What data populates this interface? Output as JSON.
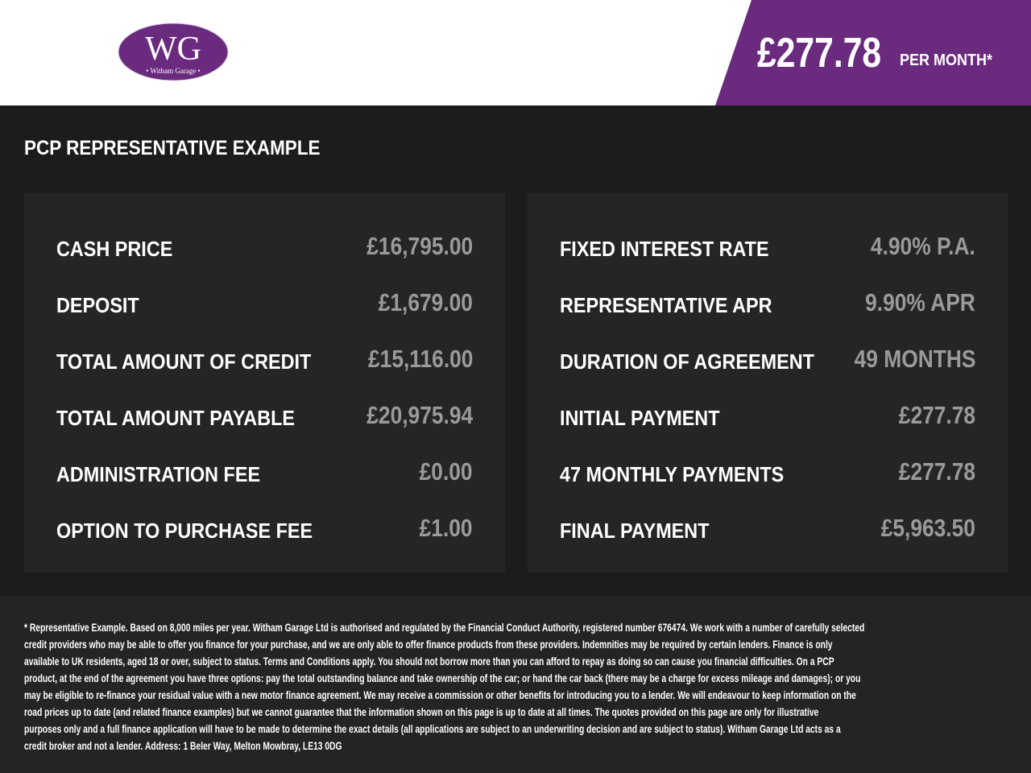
{
  "header": {
    "logo": {
      "monogram": "WG",
      "name": "• Witham Garage •"
    },
    "price": "£277.78",
    "price_suffix": "PER MONTH*",
    "colors": {
      "accent": "#6a2a7e",
      "background": "#1c1c1c",
      "panel": "#252525",
      "value": "#9a9a9a"
    }
  },
  "section_title": "PCP REPRESENTATIVE EXAMPLE",
  "left_panel": [
    {
      "label": "CASH PRICE",
      "value": "£16,795.00"
    },
    {
      "label": "DEPOSIT",
      "value": "£1,679.00"
    },
    {
      "label": "TOTAL AMOUNT OF CREDIT",
      "value": "£15,116.00"
    },
    {
      "label": "TOTAL AMOUNT PAYABLE",
      "value": "£20,975.94"
    },
    {
      "label": "ADMINISTRATION FEE",
      "value": "£0.00"
    },
    {
      "label": "OPTION TO PURCHASE FEE",
      "value": "£1.00"
    }
  ],
  "right_panel": [
    {
      "label": "FIXED INTEREST RATE",
      "value": "4.90% P.A."
    },
    {
      "label": "REPRESENTATIVE APR",
      "value": "9.90% APR"
    },
    {
      "label": "DURATION OF AGREEMENT",
      "value": "49 MONTHS"
    },
    {
      "label": "INITIAL PAYMENT",
      "value": "£277.78"
    },
    {
      "label": "47 MONTHLY PAYMENTS",
      "value": "£277.78"
    },
    {
      "label": "FINAL PAYMENT",
      "value": "£5,963.50"
    }
  ],
  "disclaimer": [
    "* Representative Example. Based on 8,000 miles per year. Witham Garage Ltd is authorised and regulated by the Financial Conduct Authority, registered number 676474. We work with a number of carefully selected",
    "credit providers who may be able to offer you finance for your purchase, and we are only able to offer finance products from these providers. Indemnities may be required by certain lenders. Finance is only",
    "available to UK residents, aged 18 or over, subject to status. Terms and Conditions apply. You should not borrow more than you can afford to repay as doing so can cause you financial difficulties. On a PCP",
    "product, at the end of the agreement you have three options: pay the total outstanding balance and take ownership of the car; or hand the car back (there may be a charge for excess mileage and damages); or you",
    "may be eligible to re-finance your residual value with a new motor finance agreement. We may receive a commission or other benefits for introducing you to a lender. We will endeavour to keep information on the",
    "road prices up to date (and related finance examples) but we cannot guarantee that the information shown on this page is up to date at all times. The quotes provided on this page are only for illustrative",
    "purposes only and a full finance application will have to be made to determine the exact details (all applications are subject to an underwriting decision and are subject to status). Witham Garage Ltd acts as a",
    "credit broker and not a lender. Address: 1 Beler Way, Melton Mowbray, LE13 0DG"
  ]
}
